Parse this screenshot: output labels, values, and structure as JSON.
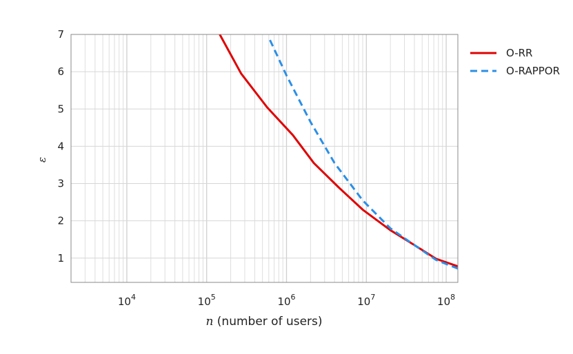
{
  "chart_data": {
    "type": "line",
    "xscale": "log",
    "xlim": [
      2000,
      140000000
    ],
    "ylim": [
      0.35,
      7
    ],
    "xlabel": {
      "var": "n",
      "rest": " (number of users)"
    },
    "ylabel": "ε",
    "xticks": [
      {
        "value": 10000,
        "base": "10",
        "exp": "4"
      },
      {
        "value": 100000,
        "base": "10",
        "exp": "5"
      },
      {
        "value": 1000000,
        "base": "10",
        "exp": "6"
      },
      {
        "value": 10000000,
        "base": "10",
        "exp": "7"
      },
      {
        "value": 100000000,
        "base": "10",
        "exp": "8"
      }
    ],
    "yticks": [
      {
        "value": 1,
        "label": "1"
      },
      {
        "value": 2,
        "label": "2"
      },
      {
        "value": 3,
        "label": "3"
      },
      {
        "value": 4,
        "label": "4"
      },
      {
        "value": 5,
        "label": "5"
      },
      {
        "value": 6,
        "label": "6"
      },
      {
        "value": 7,
        "label": "7"
      }
    ],
    "grid": true,
    "legend_position": "outside-right-top",
    "series": [
      {
        "name": "O-RR",
        "color": "#e00000",
        "dash": "solid",
        "points": [
          [
            146000,
            7.0
          ],
          [
            270000,
            5.95
          ],
          [
            570000,
            5.05
          ],
          [
            1200000,
            4.3
          ],
          [
            2200000,
            3.55
          ],
          [
            4500000,
            2.9
          ],
          [
            9000000,
            2.3
          ],
          [
            20000000,
            1.75
          ],
          [
            40000000,
            1.35
          ],
          [
            75000000,
            0.98
          ],
          [
            140000000,
            0.78
          ]
        ]
      },
      {
        "name": "O-RAPPOR",
        "color": "#2b8fe6",
        "dash": "dashed",
        "points": [
          [
            620000,
            6.85
          ],
          [
            1000000,
            5.9
          ],
          [
            2000000,
            4.65
          ],
          [
            4000000,
            3.55
          ],
          [
            9000000,
            2.55
          ],
          [
            20000000,
            1.8
          ],
          [
            40000000,
            1.35
          ],
          [
            75000000,
            0.95
          ],
          [
            140000000,
            0.72
          ]
        ]
      }
    ]
  }
}
